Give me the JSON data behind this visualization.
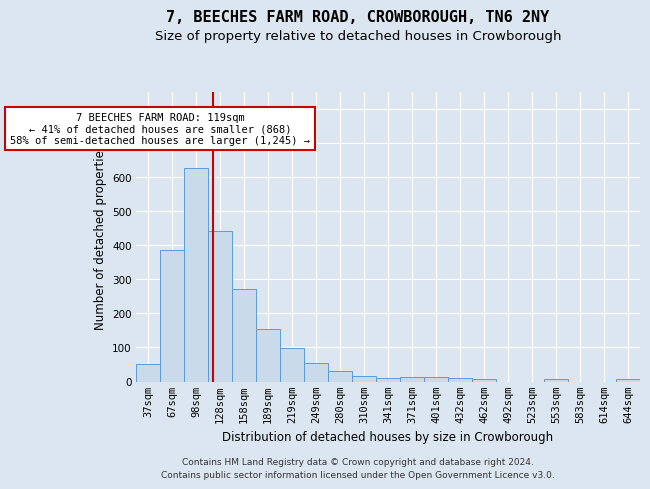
{
  "title": "7, BEECHES FARM ROAD, CROWBOROUGH, TN6 2NY",
  "subtitle": "Size of property relative to detached houses in Crowborough",
  "xlabel": "Distribution of detached houses by size in Crowborough",
  "ylabel": "Number of detached properties",
  "footnote": "Contains HM Land Registry data © Crown copyright and database right 2024.\nContains public sector information licensed under the Open Government Licence v3.0.",
  "categories": [
    "37sqm",
    "67sqm",
    "98sqm",
    "128sqm",
    "158sqm",
    "189sqm",
    "219sqm",
    "249sqm",
    "280sqm",
    "310sqm",
    "341sqm",
    "371sqm",
    "401sqm",
    "432sqm",
    "462sqm",
    "492sqm",
    "523sqm",
    "553sqm",
    "583sqm",
    "614sqm",
    "644sqm"
  ],
  "bar_values": [
    50,
    385,
    625,
    440,
    270,
    155,
    98,
    55,
    30,
    15,
    10,
    12,
    14,
    10,
    7,
    0,
    0,
    8,
    0,
    0,
    8
  ],
  "bar_color": "#c9daea",
  "bar_edge_color": "#5b9bd5",
  "ylim": [
    0,
    850
  ],
  "yticks": [
    0,
    100,
    200,
    300,
    400,
    500,
    600,
    700,
    800
  ],
  "red_line_x": 2.7,
  "annotation_line1": "7 BEECHES FARM ROAD: 119sqm",
  "annotation_line2": "← 41% of detached houses are smaller (868)",
  "annotation_line3": "58% of semi-detached houses are larger (1,245) →",
  "annotation_box_color": "#ffffff",
  "annotation_box_edge_color": "#cc0000",
  "background_color": "#dce6f0",
  "grid_color": "#ffffff",
  "title_fontsize": 11,
  "subtitle_fontsize": 9.5,
  "ylabel_fontsize": 8.5,
  "xlabel_fontsize": 8.5,
  "tick_fontsize": 7.5,
  "ann_fontsize": 7.5,
  "footnote_fontsize": 6.5
}
